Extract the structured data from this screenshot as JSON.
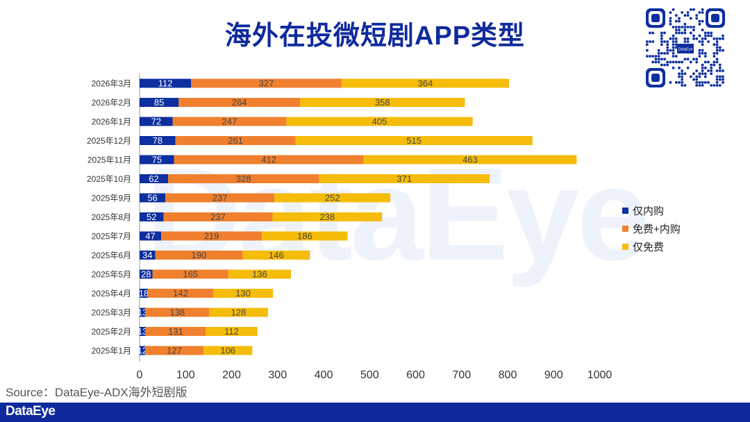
{
  "title": "海外在投微短剧APP类型",
  "watermark": "DataEye",
  "source": "Source：DataEye-ADX海外短剧版",
  "footer_logo": "DataEye",
  "qr_center_label": "DataEye",
  "colors": {
    "iap_only": "#0d2fa0",
    "hybrid": "#f0802e",
    "free_only": "#f5bc0a",
    "title": "#0f2a9c"
  },
  "chart_data": {
    "type": "bar",
    "orientation": "horizontal",
    "stacked": true,
    "categories": [
      "2026年3月",
      "2026年2月",
      "2026年1月",
      "2025年12月",
      "2025年11月",
      "2025年10月",
      "2025年9月",
      "2025年8月",
      "2025年7月",
      "2025年6月",
      "2025年5月",
      "2025年4月",
      "2025年3月",
      "2025年2月",
      "2025年1月"
    ],
    "series": [
      {
        "name": "仅内购",
        "color": "#0d2fa0",
        "label_color": "#ffffff",
        "values": [
          112,
          85,
          72,
          78,
          75,
          62,
          56,
          52,
          47,
          34,
          28,
          18,
          13,
          13,
          12
        ]
      },
      {
        "name": "免费+内购",
        "color": "#f0802e",
        "label_color": "#444444",
        "values": [
          327,
          264,
          247,
          261,
          412,
          328,
          237,
          237,
          219,
          190,
          165,
          142,
          138,
          131,
          127
        ]
      },
      {
        "name": "仅免费",
        "color": "#f5bc0a",
        "label_color": "#444444",
        "values": [
          364,
          358,
          405,
          515,
          463,
          371,
          252,
          238,
          186,
          146,
          136,
          130,
          128,
          112,
          106
        ]
      }
    ],
    "point_labels": [
      [
        "112",
        "85",
        "72",
        "78",
        "75",
        "62",
        "56",
        "52",
        "47",
        "34",
        "28",
        "18",
        "13",
        "13",
        "12"
      ],
      [
        "327",
        "264",
        "247",
        "261",
        "412",
        "328",
        "237",
        "237",
        "219",
        "190",
        "165",
        "142",
        "138",
        "131",
        "127"
      ],
      [
        "364",
        "358",
        "405",
        "515",
        "463",
        "371",
        "252",
        "238",
        "186",
        "146",
        "136",
        "130",
        "128",
        "112",
        "106"
      ]
    ],
    "xlim": [
      0,
      1000
    ],
    "xticks": [
      0,
      100,
      200,
      300,
      400,
      500,
      600,
      700,
      800,
      900,
      1000
    ],
    "legend_position": "right",
    "title": "海外在投微短剧APP类型",
    "xlabel": "",
    "ylabel": ""
  }
}
